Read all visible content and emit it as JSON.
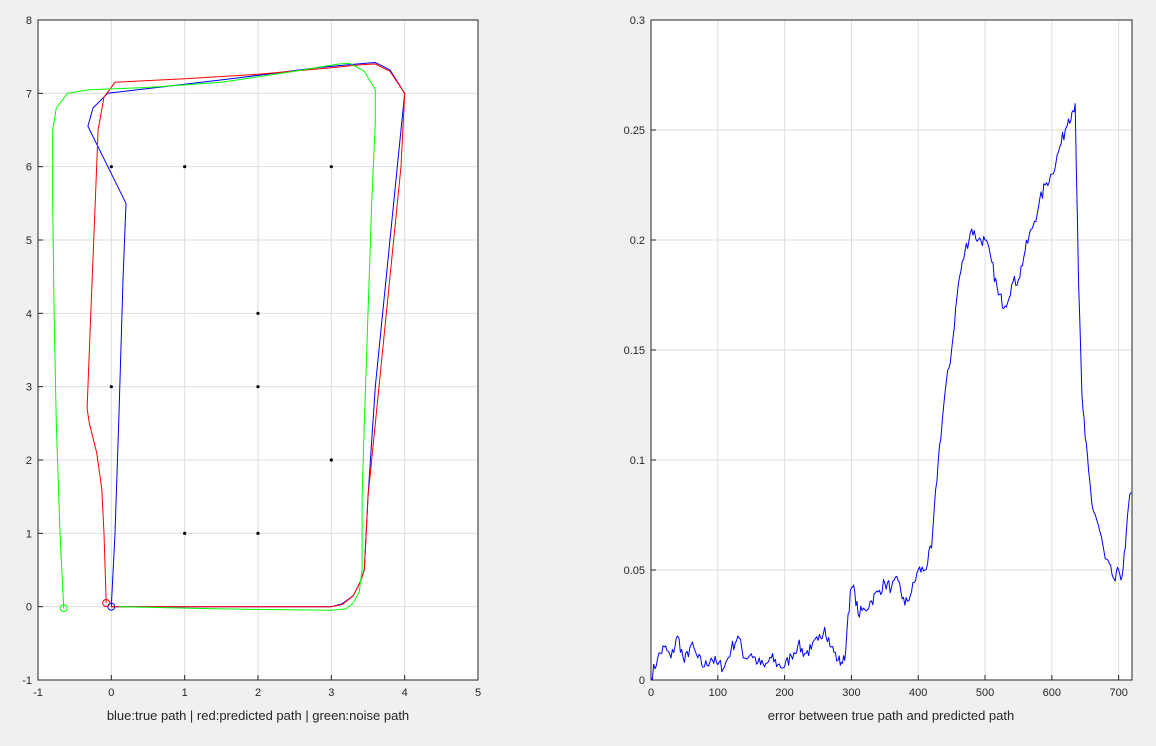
{
  "chart_data": [
    {
      "type": "line",
      "xlabel": "blue:true path | red:predicted path | green:noise path",
      "ylabel": "",
      "title": "",
      "xlim": [
        -1,
        5
      ],
      "ylim": [
        -1,
        8
      ],
      "xticks": [
        "-1",
        "0",
        "1",
        "2",
        "3",
        "4",
        "5"
      ],
      "yticks": [
        "-1",
        "0",
        "1",
        "2",
        "3",
        "4",
        "5",
        "6",
        "7",
        "8"
      ],
      "grid": true,
      "series": [
        {
          "color": "#0000ff",
          "points": [
            [
              0,
              0
            ],
            [
              0.05,
              1.0
            ],
            [
              0.1,
              2.5
            ],
            [
              0.13,
              3.5
            ],
            [
              0.16,
              4.5
            ],
            [
              0.2,
              5.5
            ],
            [
              -0.32,
              6.55
            ],
            [
              -0.25,
              6.8
            ],
            [
              -0.05,
              7.0
            ],
            [
              0.8,
              7.1
            ],
            [
              1.8,
              7.22
            ],
            [
              2.8,
              7.35
            ],
            [
              3.35,
              7.4
            ],
            [
              3.6,
              7.42
            ],
            [
              3.8,
              7.32
            ],
            [
              4.0,
              7.0
            ],
            [
              3.9,
              6.0
            ],
            [
              3.75,
              4.5
            ],
            [
              3.6,
              3.0
            ],
            [
              3.5,
              1.5
            ],
            [
              3.45,
              0.5
            ],
            [
              3.4,
              0.35
            ],
            [
              3.3,
              0.15
            ],
            [
              3.15,
              0.04
            ],
            [
              3.0,
              0.0
            ],
            [
              1.5,
              0.0
            ],
            [
              0,
              0
            ]
          ],
          "start_marker": [
            0,
            0
          ]
        },
        {
          "color": "#ff0000",
          "points": [
            [
              -0.07,
              0.05
            ],
            [
              -0.1,
              1.0
            ],
            [
              -0.13,
              1.6
            ],
            [
              -0.2,
              2.1
            ],
            [
              -0.3,
              2.5
            ],
            [
              -0.33,
              2.7
            ],
            [
              -0.28,
              4.0
            ],
            [
              -0.22,
              5.5
            ],
            [
              -0.18,
              6.5
            ],
            [
              -0.1,
              6.95
            ],
            [
              0.05,
              7.15
            ],
            [
              1.0,
              7.2
            ],
            [
              2.0,
              7.26
            ],
            [
              3.0,
              7.35
            ],
            [
              3.4,
              7.39
            ],
            [
              3.6,
              7.4
            ],
            [
              3.8,
              7.3
            ],
            [
              4.0,
              7.0
            ],
            [
              3.95,
              6.0
            ],
            [
              3.8,
              4.5
            ],
            [
              3.65,
              3.0
            ],
            [
              3.5,
              1.5
            ],
            [
              3.45,
              0.5
            ],
            [
              3.4,
              0.35
            ],
            [
              3.3,
              0.15
            ],
            [
              3.15,
              0.03
            ],
            [
              3.0,
              0.0
            ],
            [
              1.5,
              0.0
            ],
            [
              0,
              0.0
            ]
          ],
          "start_marker": [
            -0.07,
            0.05
          ]
        },
        {
          "color": "#00ff00",
          "points": [
            [
              -0.65,
              -0.02
            ],
            [
              -0.7,
              1.0
            ],
            [
              -0.75,
              2.5
            ],
            [
              -0.78,
              4.0
            ],
            [
              -0.8,
              5.5
            ],
            [
              -0.8,
              6.5
            ],
            [
              -0.75,
              6.8
            ],
            [
              -0.6,
              7.0
            ],
            [
              -0.3,
              7.05
            ],
            [
              0.5,
              7.08
            ],
            [
              1.5,
              7.15
            ],
            [
              2.5,
              7.3
            ],
            [
              3.1,
              7.4
            ],
            [
              3.25,
              7.41
            ],
            [
              3.45,
              7.3
            ],
            [
              3.6,
              7.05
            ],
            [
              3.6,
              6.6
            ],
            [
              3.55,
              5.5
            ],
            [
              3.5,
              4.0
            ],
            [
              3.45,
              2.5
            ],
            [
              3.42,
              1.5
            ],
            [
              3.42,
              0.5
            ],
            [
              3.38,
              0.2
            ],
            [
              3.3,
              0.05
            ],
            [
              3.2,
              -0.03
            ],
            [
              3.0,
              -0.05
            ],
            [
              1.5,
              -0.03
            ],
            [
              0.1,
              0.0
            ]
          ],
          "start_marker": [
            -0.65,
            -0.02
          ]
        }
      ],
      "landmarks": [
        [
          0,
          6
        ],
        [
          1,
          6
        ],
        [
          3,
          6
        ],
        [
          2,
          4
        ],
        [
          0,
          3
        ],
        [
          2,
          3
        ],
        [
          3,
          2
        ],
        [
          1,
          1
        ],
        [
          2,
          1
        ]
      ]
    },
    {
      "type": "line",
      "xlabel": "error between true path and predicted path",
      "ylabel": "",
      "title": "",
      "xlim": [
        0,
        720
      ],
      "ylim": [
        0,
        0.3
      ],
      "xticks": [
        "0",
        "100",
        "200",
        "300",
        "400",
        "500",
        "600",
        "700"
      ],
      "yticks": [
        "0",
        "0.05",
        "0.1",
        "0.15",
        "0.2",
        "0.25",
        "0.3"
      ],
      "grid": true,
      "series": [
        {
          "color": "#0000ff",
          "x": [
            0,
            10,
            20,
            30,
            40,
            50,
            60,
            70,
            80,
            90,
            100,
            110,
            120,
            130,
            140,
            150,
            160,
            170,
            180,
            190,
            200,
            210,
            220,
            230,
            240,
            250,
            260,
            270,
            280,
            285,
            290,
            295,
            300,
            305,
            310,
            320,
            330,
            340,
            350,
            360,
            370,
            380,
            390,
            400,
            410,
            420,
            430,
            440,
            450,
            460,
            470,
            480,
            490,
            500,
            510,
            520,
            530,
            540,
            550,
            560,
            570,
            580,
            590,
            600,
            610,
            620,
            625,
            630,
            635,
            640,
            645,
            650,
            655,
            660,
            665,
            670,
            680,
            690,
            695,
            700,
            705,
            710,
            715,
            720
          ],
          "values": [
            0.001,
            0.01,
            0.015,
            0.01,
            0.02,
            0.008,
            0.016,
            0.01,
            0.006,
            0.01,
            0.007,
            0.006,
            0.014,
            0.02,
            0.01,
            0.012,
            0.008,
            0.006,
            0.01,
            0.007,
            0.006,
            0.011,
            0.016,
            0.012,
            0.014,
            0.018,
            0.024,
            0.015,
            0.009,
            0.008,
            0.009,
            0.03,
            0.042,
            0.04,
            0.03,
            0.032,
            0.036,
            0.04,
            0.044,
            0.042,
            0.045,
            0.034,
            0.04,
            0.05,
            0.05,
            0.06,
            0.1,
            0.13,
            0.15,
            0.18,
            0.195,
            0.205,
            0.2,
            0.2,
            0.19,
            0.175,
            0.17,
            0.18,
            0.182,
            0.195,
            0.205,
            0.215,
            0.225,
            0.23,
            0.24,
            0.25,
            0.255,
            0.258,
            0.262,
            0.18,
            0.13,
            0.11,
            0.095,
            0.08,
            0.075,
            0.07,
            0.055,
            0.048,
            0.045,
            0.05,
            0.047,
            0.06,
            0.08,
            0.085
          ]
        }
      ]
    }
  ]
}
